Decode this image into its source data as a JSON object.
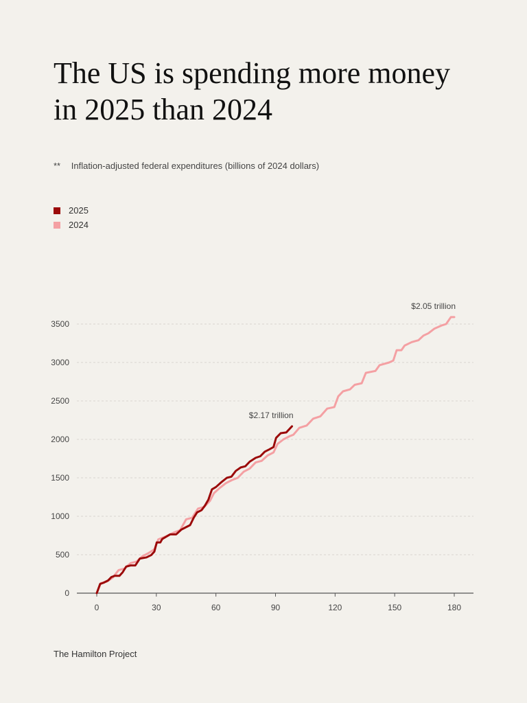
{
  "title": "The US is spending more money in 2025 than 2024",
  "subtitle_marker": "**",
  "subtitle": "Inflation-adjusted federal expenditures (billions of 2024 dollars)",
  "source": "The Hamilton Project",
  "chart_data": {
    "type": "line",
    "title": "The US is spending more money in 2025 than 2024",
    "xlim": [
      0,
      180
    ],
    "ylim": [
      0,
      3500
    ],
    "xticks": [
      0,
      30,
      60,
      90,
      120,
      150,
      180
    ],
    "yticks": [
      0,
      500,
      1000,
      1500,
      2000,
      2500,
      3000,
      3500
    ],
    "grid": "horizontal dashed",
    "legend_position": "top-left",
    "series": [
      {
        "name": "2025",
        "color": "#9b0a0a",
        "x": [
          0,
          1.7,
          3.4,
          5.7,
          7.4,
          9,
          11.4,
          13,
          14.8,
          17,
          19.4,
          21.7,
          25,
          27.4,
          29,
          30.2,
          32,
          33,
          37,
          40,
          42.5,
          44.7,
          47,
          48.8,
          50.5,
          52.8,
          54.5,
          56.2,
          58,
          60,
          62.6,
          65.5,
          67.8,
          70,
          72.5,
          74.8,
          77,
          80,
          82.3,
          84.6,
          86.9,
          89,
          90.3,
          92.6,
          95.4,
          98.3
        ],
        "y": [
          0,
          120,
          135,
          165,
          210,
          225,
          225,
          270,
          345,
          360,
          360,
          450,
          465,
          495,
          540,
          660,
          660,
          705,
          765,
          765,
          825,
          855,
          885,
          980,
          1050,
          1080,
          1140,
          1215,
          1350,
          1380,
          1440,
          1500,
          1515,
          1590,
          1635,
          1650,
          1710,
          1760,
          1780,
          1840,
          1870,
          1900,
          2020,
          2080,
          2090,
          2170
        ],
        "end_label": "$2.17 trillion"
      },
      {
        "name": "2024",
        "color": "#f4a0a3",
        "x": [
          0,
          2,
          5,
          8,
          11,
          14,
          17,
          20,
          23,
          26,
          29,
          31,
          35,
          39,
          42,
          45,
          48,
          51,
          54,
          57,
          59,
          62,
          65,
          68,
          71,
          74,
          77,
          80,
          83,
          86,
          89,
          91,
          94,
          97,
          99,
          102,
          105.7,
          109,
          112.6,
          116,
          119.6,
          121.6,
          124,
          127.5,
          129.9,
          133.4,
          135.5,
          140.3,
          142.4,
          147.2,
          149.3,
          151,
          153.4,
          155,
          158.6,
          162,
          164.5,
          167,
          170,
          173.5,
          175.9,
          178.3,
          180
        ],
        "y": [
          0,
          130,
          150,
          200,
          300,
          320,
          390,
          410,
          480,
          520,
          570,
          700,
          740,
          790,
          820,
          960,
          980,
          1100,
          1120,
          1200,
          1300,
          1370,
          1430,
          1470,
          1500,
          1580,
          1620,
          1700,
          1720,
          1790,
          1830,
          1940,
          2000,
          2040,
          2060,
          2150,
          2180,
          2270,
          2300,
          2400,
          2420,
          2560,
          2625,
          2650,
          2710,
          2730,
          2865,
          2890,
          2965,
          3000,
          3025,
          3160,
          3160,
          3220,
          3265,
          3290,
          3350,
          3380,
          3440,
          3480,
          3500,
          3590,
          3590
        ],
        "end_label": "$2.05 trillion"
      }
    ]
  }
}
